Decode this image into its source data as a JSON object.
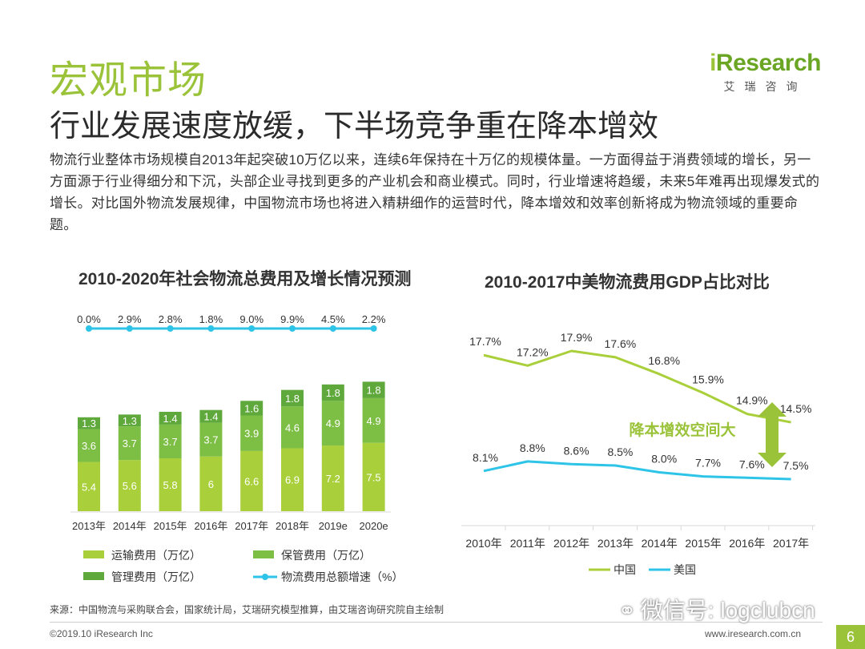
{
  "section_title": "宏观市场",
  "headline": "行业发展速度放缓，下半场竞争重在降本增效",
  "body_text": "物流行业整体市场规模自2013年起突破10万亿以来，连续6年保持在十万亿的规模体量。一方面得益于消费领域的增长，另一方面源于行业得细分和下沉，头部企业寻找到更多的产业机会和商业模式。同时，行业增速将趋缓，未来5年难再出现爆发式的增长。对比国外物流发展规律，中国物流市场也将进入精耕细作的运营时代，降本增效和效率创新将成为物流领域的重要命题。",
  "brand": {
    "logo": "iResearch",
    "logo_i": "i",
    "logo_rest": "Research",
    "sub": "艾瑞咨询"
  },
  "colors": {
    "brand_green": "#9BC33A",
    "dark_green": "#5FA83B",
    "mid_green": "#7DBE45",
    "light_green": "#A9CF3A",
    "cyan": "#2EC4E8"
  },
  "chart_data": [
    {
      "type": "bar",
      "title": "2010-2020年社会物流总费用及增长情况预测",
      "stacked": true,
      "categories": [
        "2013年",
        "2014年",
        "2015年",
        "2016年",
        "2017年",
        "2018年",
        "2019e",
        "2020e"
      ],
      "series": [
        {
          "name": "运输费用（万亿）",
          "values": [
            5.4,
            5.6,
            5.8,
            6.0,
            6.6,
            6.9,
            7.2,
            7.5
          ],
          "color": "#A9CF3A"
        },
        {
          "name": "保管费用（万亿）",
          "values": [
            3.6,
            3.7,
            3.7,
            3.7,
            3.9,
            4.6,
            4.9,
            4.9
          ],
          "color": "#7DBE45"
        },
        {
          "name": "管理费用（万亿）",
          "values": [
            1.3,
            1.3,
            1.4,
            1.4,
            1.6,
            1.8,
            1.8,
            1.8
          ],
          "color": "#5FA83B"
        }
      ],
      "line_series": {
        "name": "物流费用总额增速（%）",
        "labels": [
          "0.0%",
          "2.9%",
          "2.8%",
          "1.8%",
          "9.0%",
          "9.9%",
          "4.5%",
          "2.2%"
        ],
        "values": [
          0.0,
          2.9,
          2.8,
          1.8,
          9.0,
          9.9,
          4.5,
          2.2
        ],
        "color": "#2EC4E8"
      },
      "legend_position": "bottom"
    },
    {
      "type": "line",
      "title": "2010-2017中美物流费用GDP占比对比",
      "categories": [
        "2010年",
        "2011年",
        "2012年",
        "2013年",
        "2014年",
        "2015年",
        "2016年",
        "2017年"
      ],
      "series": [
        {
          "name": "中国",
          "values": [
            17.7,
            17.2,
            17.9,
            17.6,
            16.8,
            15.9,
            14.9,
            14.5
          ],
          "labels": [
            "17.7%",
            "17.2%",
            "17.9%",
            "17.6%",
            "16.8%",
            "15.9%",
            "14.9%",
            "14.5%"
          ],
          "color": "#A9CF3A"
        },
        {
          "name": "美国",
          "values": [
            8.1,
            8.8,
            8.6,
            8.5,
            8.0,
            7.7,
            7.6,
            7.5
          ],
          "labels": [
            "8.1%",
            "8.8%",
            "8.6%",
            "8.5%",
            "8.0%",
            "7.7%",
            "7.6%",
            "7.5%"
          ],
          "color": "#2EC4E8"
        }
      ],
      "annotation": "降本增效空间大",
      "legend_position": "bottom"
    }
  ],
  "source": "来源：中国物流与采购联合会，国家统计局，艾瑞研究模型推算，由艾瑞咨询研究院自主绘制",
  "copyright": "©2019.10 iResearch Inc",
  "site": "www.iresearch.com.cn",
  "page_number": "6",
  "watermark": "微信号: logclubcn"
}
